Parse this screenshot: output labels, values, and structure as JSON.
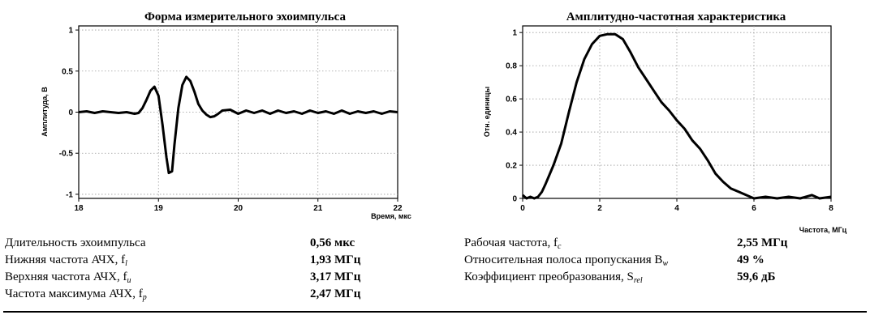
{
  "chart_data": [
    {
      "type": "line",
      "title": "Форма измерительного эхоимпульса",
      "xlabel": "Время, мкс",
      "ylabel": "Амплитуда, В",
      "xlim": [
        18,
        22
      ],
      "ylim": [
        -1.05,
        1.05
      ],
      "xticks": [
        "18",
        "19",
        "20",
        "21",
        "22"
      ],
      "yticks": [
        "1",
        "0.5",
        "0",
        "-0.5",
        "-1"
      ],
      "grid": true,
      "series": [
        {
          "x": [
            18.0,
            18.1,
            18.2,
            18.3,
            18.4,
            18.5,
            18.6,
            18.7,
            18.75,
            18.8,
            18.85,
            18.9,
            18.95,
            19.0,
            19.05,
            19.1,
            19.13,
            19.17,
            19.2,
            19.25,
            19.3,
            19.35,
            19.4,
            19.45,
            19.5,
            19.55,
            19.6,
            19.65,
            19.7,
            19.75,
            19.8,
            19.9,
            20.0,
            20.1,
            20.2,
            20.3,
            20.4,
            20.5,
            20.6,
            20.7,
            20.8,
            20.9,
            21.0,
            21.1,
            21.2,
            21.3,
            21.4,
            21.5,
            21.6,
            21.7,
            21.8,
            21.9,
            22.0
          ],
          "y": [
            0.0,
            0.01,
            -0.01,
            0.01,
            0.0,
            -0.01,
            0.0,
            -0.02,
            -0.01,
            0.05,
            0.15,
            0.26,
            0.31,
            0.2,
            -0.15,
            -0.55,
            -0.74,
            -0.72,
            -0.4,
            0.05,
            0.33,
            0.43,
            0.38,
            0.25,
            0.1,
            0.02,
            -0.03,
            -0.06,
            -0.05,
            -0.02,
            0.02,
            0.03,
            -0.02,
            0.02,
            -0.01,
            0.02,
            -0.02,
            0.02,
            -0.01,
            0.01,
            -0.02,
            0.02,
            -0.01,
            0.01,
            -0.02,
            0.02,
            -0.02,
            0.01,
            -0.01,
            0.01,
            -0.02,
            0.01,
            0.0
          ]
        }
      ]
    },
    {
      "type": "line",
      "title": "Амплитудно-частотная характеристика",
      "xlabel": "Частота, МГц",
      "ylabel": "Отн. единицы",
      "xlim": [
        0,
        8
      ],
      "ylim": [
        0,
        1.04
      ],
      "xticks": [
        "0",
        "2",
        "4",
        "6",
        "8"
      ],
      "yticks": [
        "1",
        "0.8",
        "0.6",
        "0.4",
        "0.2",
        "0"
      ],
      "grid": true,
      "series": [
        {
          "x": [
            0.0,
            0.1,
            0.2,
            0.3,
            0.4,
            0.5,
            0.6,
            0.8,
            1.0,
            1.2,
            1.4,
            1.6,
            1.8,
            2.0,
            2.2,
            2.4,
            2.6,
            2.8,
            3.0,
            3.2,
            3.4,
            3.6,
            3.8,
            4.0,
            4.2,
            4.4,
            4.6,
            4.8,
            5.0,
            5.2,
            5.4,
            5.6,
            5.8,
            6.0,
            6.3,
            6.6,
            6.9,
            7.2,
            7.5,
            7.7,
            8.0
          ],
          "y": [
            0.02,
            0.0,
            0.01,
            0.0,
            0.01,
            0.04,
            0.09,
            0.2,
            0.33,
            0.52,
            0.7,
            0.84,
            0.93,
            0.98,
            0.99,
            0.99,
            0.96,
            0.88,
            0.79,
            0.72,
            0.65,
            0.58,
            0.53,
            0.47,
            0.42,
            0.35,
            0.3,
            0.23,
            0.15,
            0.1,
            0.06,
            0.04,
            0.02,
            0.0,
            0.01,
            0.0,
            0.01,
            0.0,
            0.02,
            0.0,
            0.01
          ]
        }
      ]
    }
  ],
  "params_left": [
    {
      "label": "Длительность эхоимпульса",
      "value": "0,56 мкс"
    },
    {
      "label": "Нижняя частота АЧХ, f",
      "sub": "l",
      "value": "1,93 МГц"
    },
    {
      "label": "Верхняя частота АЧХ, f",
      "sub": "u",
      "value": "3,17 МГц"
    },
    {
      "label": "Частота максимума АЧХ, f",
      "sub": "p",
      "value": "2,47 МГц"
    }
  ],
  "params_right": [
    {
      "label": "Рабочая частота, f",
      "sub": "c",
      "value": "2,55 МГц"
    },
    {
      "label": "Относительная полоса пропускания B",
      "sub": "w",
      "value": "49 %"
    },
    {
      "label": "Коэффициент преобразования, S",
      "sub": "rel",
      "value": "59,6 дБ"
    }
  ]
}
